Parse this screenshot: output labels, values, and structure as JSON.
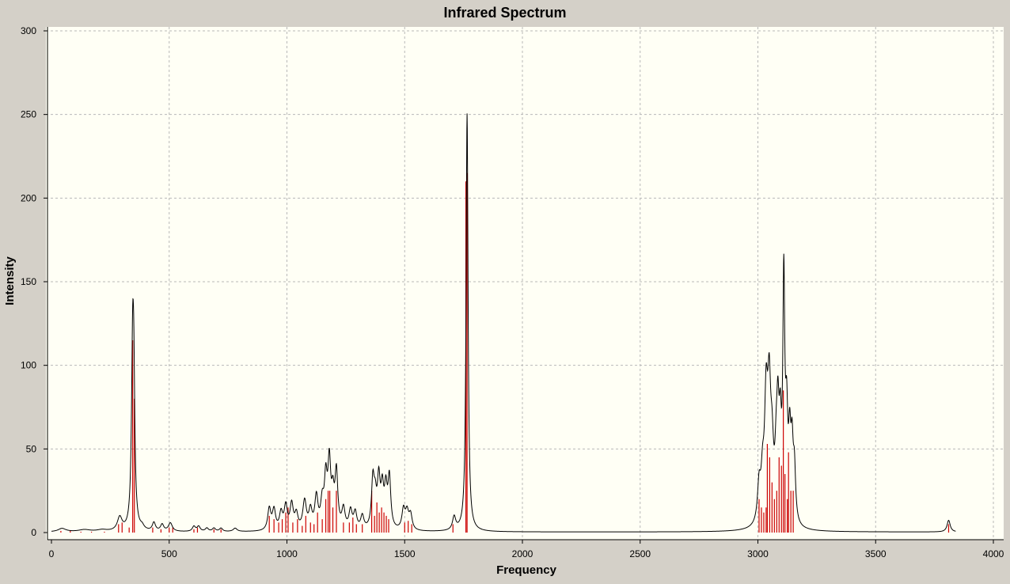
{
  "chart_data": {
    "type": "line",
    "title": "Infrared Spectrum",
    "xlabel": "Frequency",
    "ylabel": "Intensity",
    "xlim": [
      0,
      4000
    ],
    "ylim": [
      0,
      300
    ],
    "x_ticks": [
      0,
      500,
      1000,
      1500,
      2000,
      2500,
      3000,
      3500,
      4000
    ],
    "y_ticks": [
      0,
      50,
      100,
      150,
      200,
      250,
      300
    ],
    "grid": true,
    "legend": "none",
    "colors": {
      "plot_bg": "#fffff5",
      "frame_bg": "#d4d0c8",
      "spectrum": "#000000",
      "sticks": "#cc0000",
      "grid": "#b8b8b8"
    },
    "series": [
      {
        "kind": "spectrum-curve",
        "peaks": [
          [
            45,
            2,
            20
          ],
          [
            140,
            1.2,
            30
          ],
          [
            215,
            1,
            25
          ],
          [
            290,
            8,
            12
          ],
          [
            345,
            105,
            6
          ],
          [
            350,
            60,
            5
          ],
          [
            385,
            2,
            10
          ],
          [
            435,
            5,
            8
          ],
          [
            470,
            4,
            8
          ],
          [
            505,
            5,
            10
          ],
          [
            605,
            3,
            8
          ],
          [
            625,
            3,
            8
          ],
          [
            660,
            2,
            8
          ],
          [
            690,
            2,
            8
          ],
          [
            720,
            2,
            8
          ],
          [
            780,
            2,
            10
          ],
          [
            925,
            13,
            8
          ],
          [
            945,
            12,
            8
          ],
          [
            975,
            10,
            8
          ],
          [
            995,
            14,
            8
          ],
          [
            1020,
            15,
            8
          ],
          [
            1040,
            9,
            8
          ],
          [
            1075,
            17,
            9
          ],
          [
            1100,
            11,
            8
          ],
          [
            1125,
            19,
            8
          ],
          [
            1150,
            15,
            8
          ],
          [
            1165,
            28,
            7
          ],
          [
            1180,
            38,
            7
          ],
          [
            1195,
            18,
            7
          ],
          [
            1210,
            33,
            7
          ],
          [
            1240,
            12,
            8
          ],
          [
            1270,
            11,
            8
          ],
          [
            1290,
            10,
            8
          ],
          [
            1320,
            8,
            8
          ],
          [
            1365,
            28,
            7
          ],
          [
            1375,
            15,
            7
          ],
          [
            1390,
            28,
            7
          ],
          [
            1405,
            22,
            7
          ],
          [
            1420,
            22,
            7
          ],
          [
            1435,
            30,
            7
          ],
          [
            1495,
            12,
            8
          ],
          [
            1510,
            10,
            8
          ],
          [
            1525,
            9,
            8
          ],
          [
            1710,
            8,
            8
          ],
          [
            1765,
            250,
            5
          ],
          [
            3005,
            22,
            8
          ],
          [
            3020,
            24,
            8
          ],
          [
            3035,
            68,
            8
          ],
          [
            3048,
            70,
            8
          ],
          [
            3060,
            35,
            8
          ],
          [
            3078,
            30,
            7
          ],
          [
            3085,
            50,
            6
          ],
          [
            3095,
            45,
            6
          ],
          [
            3110,
            138,
            5
          ],
          [
            3122,
            55,
            6
          ],
          [
            3135,
            43,
            6
          ],
          [
            3145,
            40,
            6
          ],
          [
            3155,
            30,
            6
          ],
          [
            3810,
            7,
            8
          ]
        ]
      },
      {
        "kind": "sticks",
        "points": [
          [
            40,
            1
          ],
          [
            80,
            1
          ],
          [
            125,
            0.5
          ],
          [
            170,
            0.5
          ],
          [
            225,
            0.5
          ],
          [
            285,
            5
          ],
          [
            300,
            6
          ],
          [
            330,
            3
          ],
          [
            345,
            115
          ],
          [
            352,
            80
          ],
          [
            430,
            3
          ],
          [
            465,
            2
          ],
          [
            500,
            3
          ],
          [
            515,
            3
          ],
          [
            605,
            2
          ],
          [
            620,
            3
          ],
          [
            690,
            2
          ],
          [
            720,
            2
          ],
          [
            925,
            10
          ],
          [
            945,
            8
          ],
          [
            965,
            6
          ],
          [
            980,
            8
          ],
          [
            995,
            12
          ],
          [
            1005,
            15
          ],
          [
            1025,
            6
          ],
          [
            1045,
            8
          ],
          [
            1065,
            4
          ],
          [
            1080,
            10
          ],
          [
            1100,
            6
          ],
          [
            1115,
            5
          ],
          [
            1130,
            12
          ],
          [
            1150,
            8
          ],
          [
            1165,
            20
          ],
          [
            1175,
            25
          ],
          [
            1182,
            25
          ],
          [
            1195,
            15
          ],
          [
            1210,
            25
          ],
          [
            1240,
            6
          ],
          [
            1265,
            6
          ],
          [
            1280,
            9
          ],
          [
            1295,
            5
          ],
          [
            1320,
            5
          ],
          [
            1360,
            25
          ],
          [
            1372,
            10
          ],
          [
            1382,
            18
          ],
          [
            1392,
            12
          ],
          [
            1402,
            15
          ],
          [
            1412,
            12
          ],
          [
            1422,
            10
          ],
          [
            1432,
            8
          ],
          [
            1500,
            6
          ],
          [
            1515,
            7
          ],
          [
            1530,
            5
          ],
          [
            1705,
            5
          ],
          [
            1760,
            210
          ],
          [
            1765,
            215
          ],
          [
            3005,
            20
          ],
          [
            3015,
            15
          ],
          [
            3025,
            12
          ],
          [
            3035,
            15
          ],
          [
            3040,
            53
          ],
          [
            3050,
            45
          ],
          [
            3060,
            30
          ],
          [
            3070,
            20
          ],
          [
            3080,
            25
          ],
          [
            3090,
            45
          ],
          [
            3100,
            40
          ],
          [
            3108,
            85
          ],
          [
            3115,
            35
          ],
          [
            3125,
            20
          ],
          [
            3130,
            48
          ],
          [
            3140,
            25
          ],
          [
            3150,
            25
          ],
          [
            3810,
            5
          ]
        ]
      }
    ]
  }
}
